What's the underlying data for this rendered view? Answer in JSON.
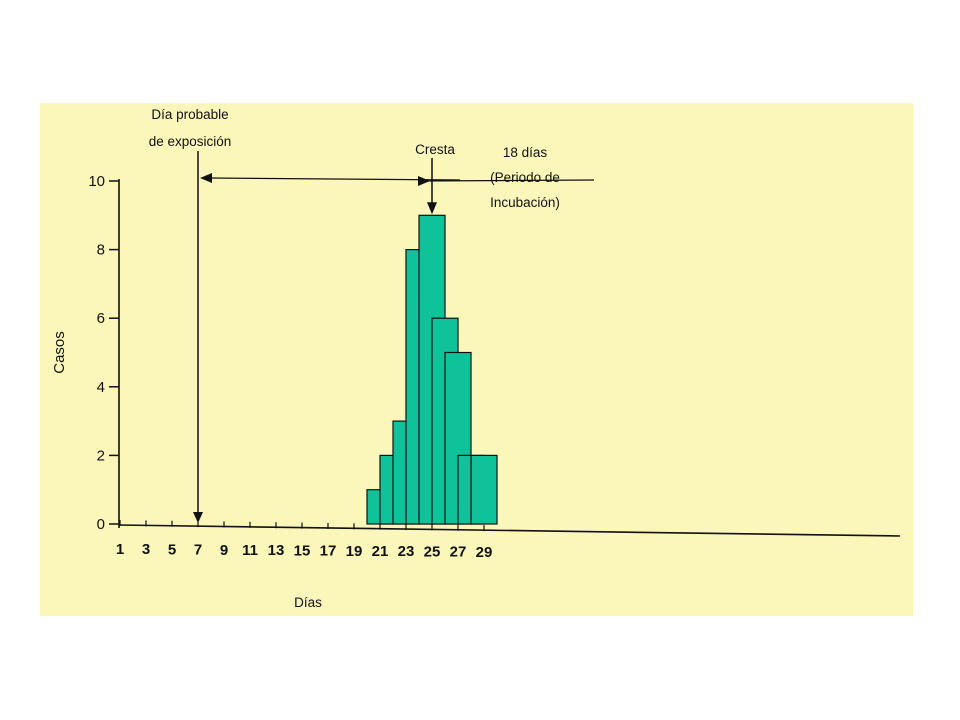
{
  "chart_data": {
    "type": "bar",
    "x": [
      21,
      22,
      23,
      24,
      25,
      26,
      27,
      28,
      29
    ],
    "values": [
      1,
      2,
      3,
      8,
      9,
      6,
      5,
      2,
      2
    ],
    "xticks": [
      "1",
      "3",
      "5",
      "7",
      "9",
      "11",
      "13",
      "15",
      "17",
      "19",
      "21",
      "23",
      "25",
      "27",
      "29"
    ],
    "yticks": [
      "0",
      "2",
      "4",
      "6",
      "8",
      "10"
    ],
    "xlim": [
      1,
      30
    ],
    "ylim": [
      0,
      10
    ],
    "xlabel": "Días",
    "ylabel": "Casos",
    "bar_color": "#10c29a",
    "annotations": {
      "exposure_line1": "Día probable",
      "exposure_line2": "de exposición",
      "exposure_day": 7,
      "period_line1": "18 días",
      "period_line2": "(Periodo de",
      "period_line3": "Incubación)",
      "peak_label": "Cresta",
      "peak_day": 25
    }
  },
  "colors": {
    "background": "#fbf6b9",
    "bars": "#10c29a",
    "ink": "#111111"
  }
}
